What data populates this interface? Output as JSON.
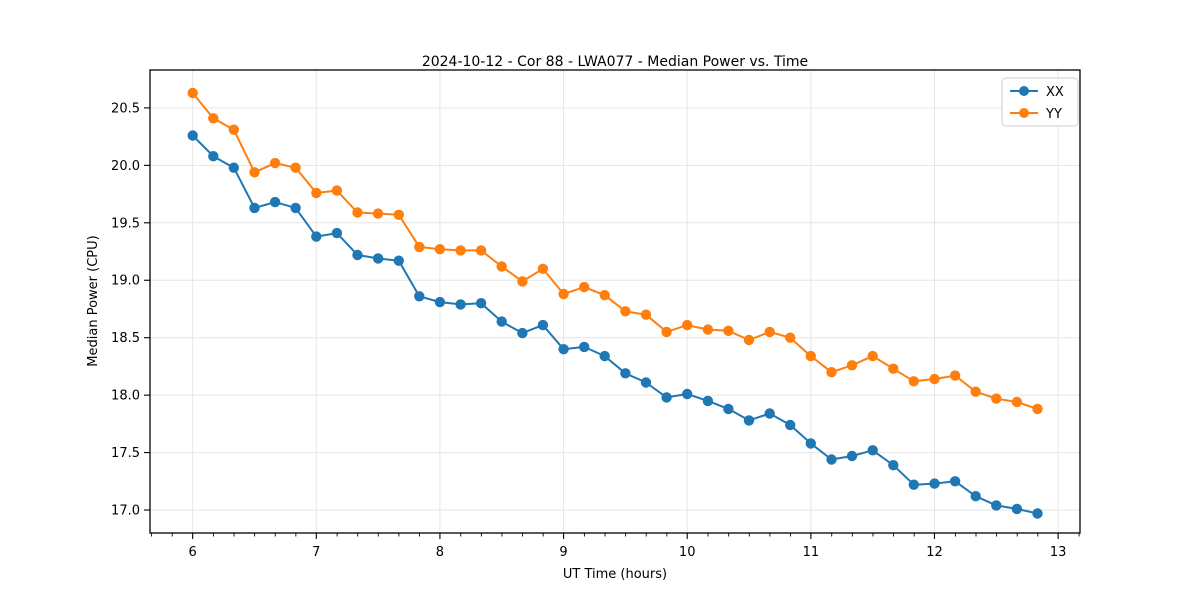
{
  "chart_data": {
    "type": "line",
    "title": "2024-10-12 - Cor 88 - LWA077 - Median Power vs. Time",
    "xlabel": "UT Time (hours)",
    "ylabel": "Median Power (CPU)",
    "xlim": [
      5.655,
      13.177
    ],
    "ylim": [
      16.8,
      20.83
    ],
    "xticks": [
      6,
      7,
      8,
      9,
      10,
      11,
      12,
      13
    ],
    "x_minor_step": 0.1667,
    "yticks": [
      17.0,
      17.5,
      18.0,
      18.5,
      19.0,
      19.5,
      20.0,
      20.5
    ],
    "grid": true,
    "grid_color": "#e6e6e6",
    "legend_position": "upper right",
    "x": [
      6.0,
      6.167,
      6.333,
      6.5,
      6.667,
      6.833,
      7.0,
      7.167,
      7.333,
      7.5,
      7.667,
      7.833,
      8.0,
      8.167,
      8.333,
      8.5,
      8.667,
      8.833,
      9.0,
      9.167,
      9.333,
      9.5,
      9.667,
      9.833,
      10.0,
      10.167,
      10.333,
      10.5,
      10.667,
      10.833,
      11.0,
      11.167,
      11.333,
      11.5,
      11.667,
      11.833,
      12.0,
      12.167,
      12.333,
      12.5,
      12.667,
      12.833
    ],
    "series": [
      {
        "name": "XX",
        "color": "#1f77b4",
        "values": [
          20.26,
          20.08,
          19.98,
          19.63,
          19.68,
          19.63,
          19.38,
          19.41,
          19.22,
          19.19,
          19.17,
          18.86,
          18.81,
          18.79,
          18.8,
          18.64,
          18.54,
          18.61,
          18.4,
          18.42,
          18.34,
          18.19,
          18.11,
          17.98,
          18.01,
          17.95,
          17.88,
          17.78,
          17.84,
          17.74,
          17.58,
          17.44,
          17.47,
          17.52,
          17.39,
          17.22,
          17.23,
          17.25,
          17.12,
          17.04,
          17.01,
          16.97
        ]
      },
      {
        "name": "YY",
        "color": "#ff7f0e",
        "values": [
          20.63,
          20.41,
          20.31,
          19.94,
          20.02,
          19.98,
          19.76,
          19.78,
          19.59,
          19.58,
          19.57,
          19.29,
          19.27,
          19.26,
          19.26,
          19.12,
          18.99,
          19.1,
          18.88,
          18.94,
          18.87,
          18.73,
          18.7,
          18.55,
          18.61,
          18.57,
          18.56,
          18.48,
          18.55,
          18.5,
          18.34,
          18.2,
          18.26,
          18.34,
          18.23,
          18.12,
          18.14,
          18.17,
          18.03,
          17.97,
          17.94,
          17.88
        ]
      }
    ]
  },
  "legend": {
    "items": [
      {
        "label": "XX"
      },
      {
        "label": "YY"
      }
    ]
  }
}
